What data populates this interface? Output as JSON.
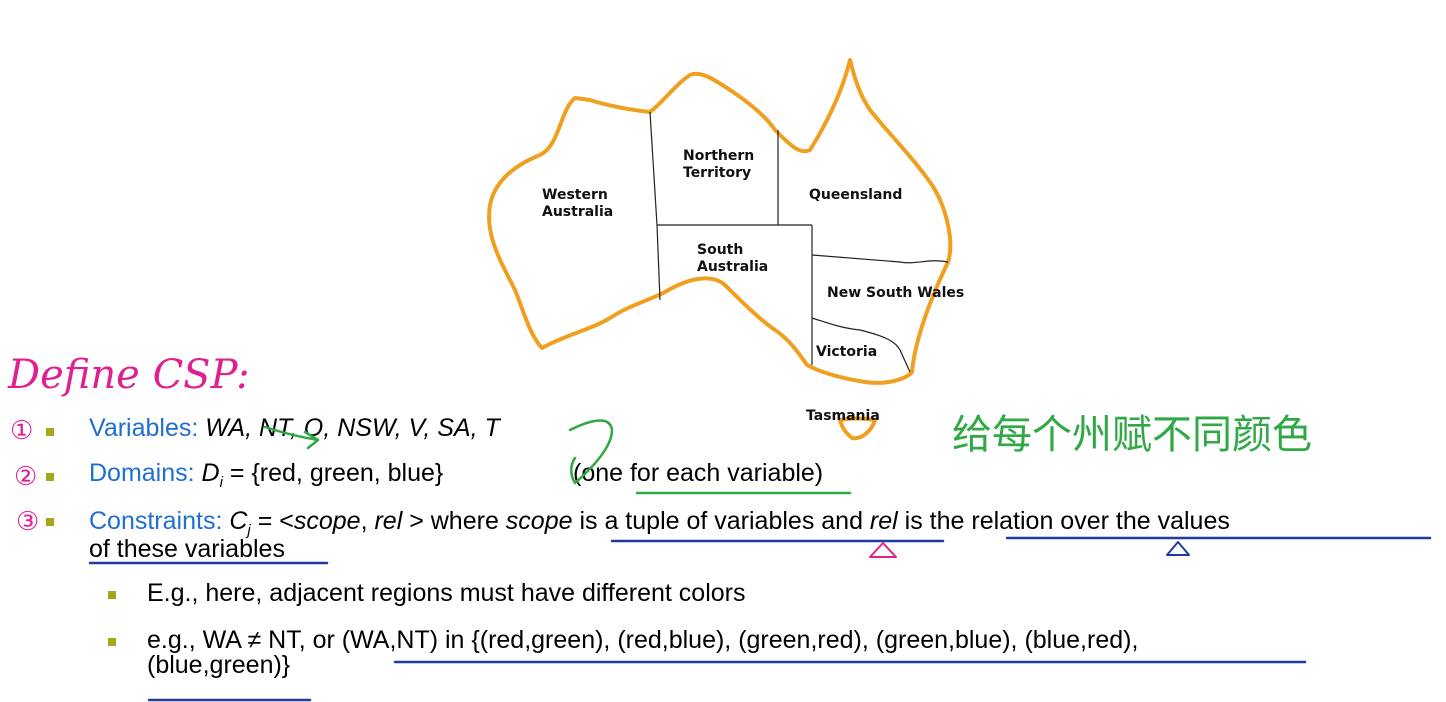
{
  "map": {
    "regions": {
      "wa": "Western\nAustralia",
      "nt": "Northern\nTerritory",
      "q": "Queensland",
      "sa": "South\nAustralia",
      "nsw": "New South Wales",
      "v": "Victoria",
      "t": "Tasmania"
    }
  },
  "annotations": {
    "title": "Define CSP:",
    "chinese_note": "给每个州赋不同颜色",
    "num1": "①",
    "num2": "②",
    "num3": "③"
  },
  "bullets": {
    "variables": {
      "label": "Variables:",
      "value": "WA, NT, Q, NSW, V, SA, T"
    },
    "domains": {
      "label": "Domains:",
      "d": "D",
      "sub": "i",
      "value": " = {red, green, blue}",
      "note": "(one for each variable)"
    },
    "constraints": {
      "label": "Constraints:",
      "c": "C",
      "sub": "j",
      "eq": " = <",
      "scope": "scope",
      "comma": ", ",
      "rel": "rel",
      "rest1": " > where ",
      "scope2": "scope",
      "rest2": " is a tuple of variables and ",
      "rel2": "rel",
      "rest3": " is the relation over the values",
      "line2": "of these variables"
    },
    "sub1": "E.g., here, adjacent regions must have different colors",
    "sub2_line1": "e.g., WA ≠ NT, or (WA,NT) in {(red,green), (red,blue), (green,red), (green,blue), (blue,red),",
    "sub2_line2": "(blue,green)}"
  }
}
